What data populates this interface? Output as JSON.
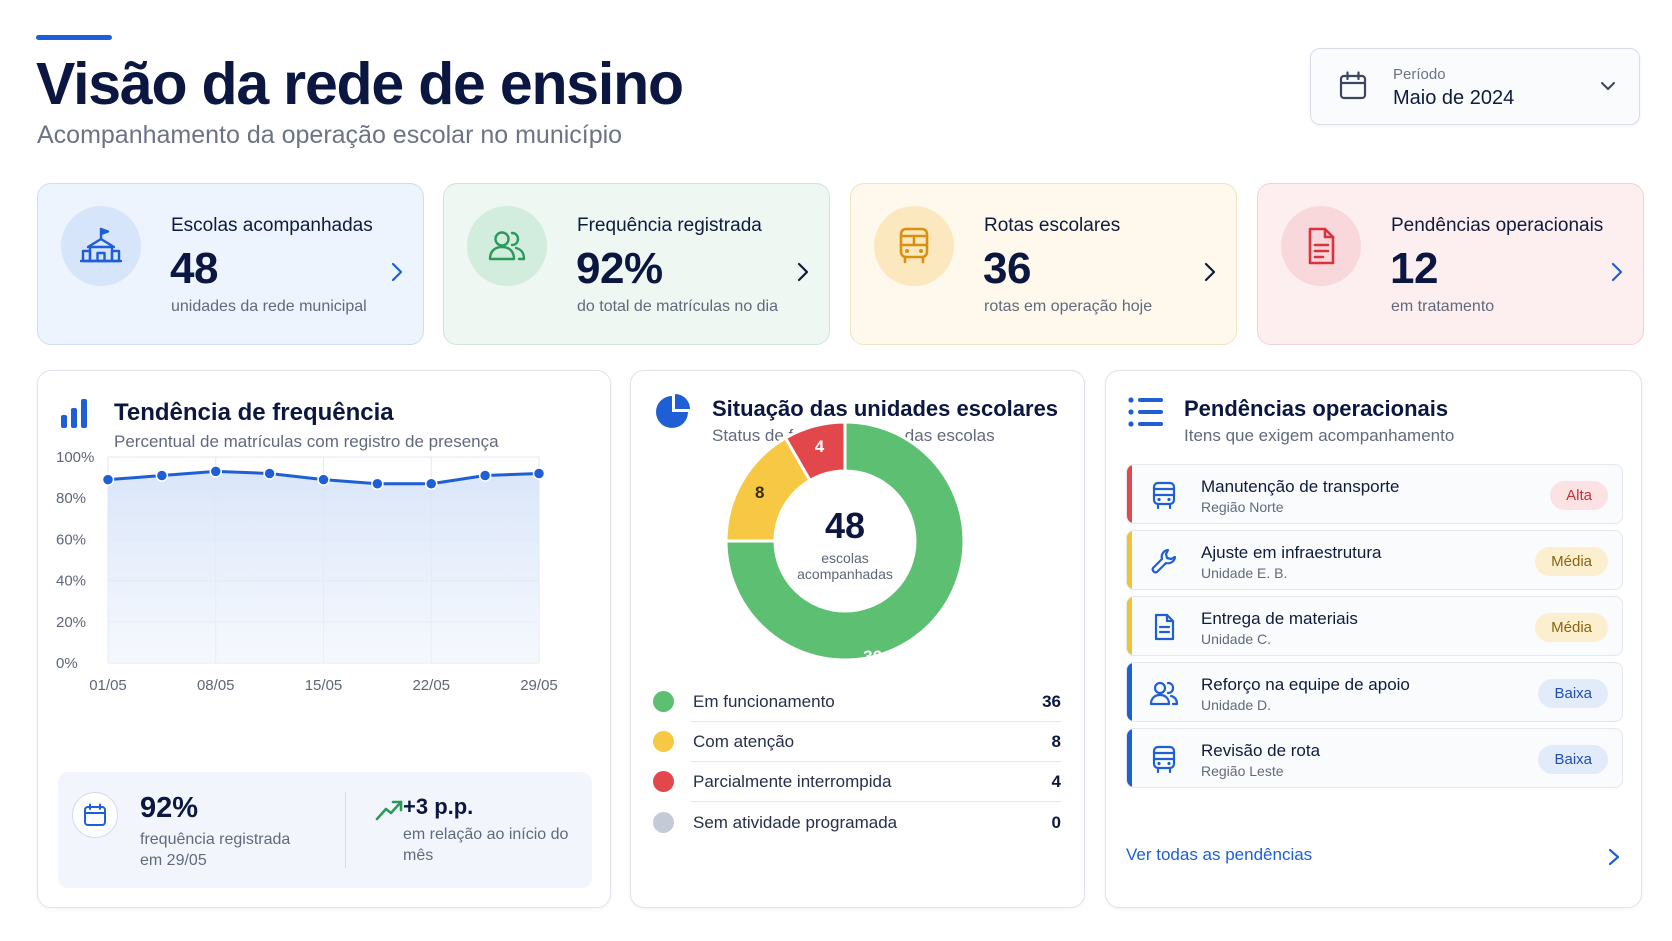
{
  "header": {
    "title": "Visão da rede de ensino",
    "subtitle": "Acompanhamento da operação escolar no município"
  },
  "period": {
    "label": "Período",
    "value": "Maio de 2024",
    "icon": "calendar-icon"
  },
  "kpis": [
    {
      "title": "Escolas acompanhadas",
      "value": "48",
      "desc": "unidades da rede municipal",
      "icon": "school-icon",
      "color": "#1f5fd6"
    },
    {
      "title": "Frequência registrada",
      "value": "92%",
      "desc": "do total de matrículas no dia",
      "icon": "users-icon",
      "color": "#2a9a5a"
    },
    {
      "title": "Rotas escolares",
      "value": "36",
      "desc": "rotas em operação hoje",
      "icon": "bus-icon",
      "color": "#d9900f"
    },
    {
      "title": "Pendências operacionais",
      "value": "12",
      "desc": "em tratamento",
      "icon": "document-icon",
      "color": "#d9343d"
    }
  ],
  "trend": {
    "title": "Tendência de frequência",
    "subtitle": "Percentual de matrículas com registro de presença",
    "summary": {
      "value": "92%",
      "desc": "frequência registrada em 29/05",
      "delta": "+3 p.p.",
      "delta_desc": "em relação ao início do mês"
    }
  },
  "chart_data": [
    {
      "type": "line",
      "title": "Tendência de frequência",
      "subtitle": "Percentual de matrículas com registro de presença",
      "x_tick_labels": [
        "01/05",
        "08/05",
        "15/05",
        "22/05",
        "29/05"
      ],
      "y_tick_labels": [
        "0%",
        "20%",
        "40%",
        "60%",
        "80%",
        "100%"
      ],
      "ylim": [
        0,
        100
      ],
      "x": [
        "01/05",
        "04/05",
        "08/05",
        "11/05",
        "15/05",
        "18/05",
        "22/05",
        "25/05",
        "29/05"
      ],
      "series": [
        {
          "values": [
            89,
            91,
            93,
            92,
            89,
            87,
            87,
            91,
            92
          ]
        }
      ],
      "grid": true,
      "area_fill": true,
      "color": "#1f5fd6"
    },
    {
      "type": "pie",
      "title": "Situação das unidades escolares",
      "subtitle": "Status de funcionamento das escolas",
      "center_value": "48",
      "center_label": "escolas acompanhadas",
      "slices": [
        {
          "name": "Em funcionamento",
          "value": 36,
          "color": "#5cbf72"
        },
        {
          "name": "Com atenção",
          "value": 8,
          "color": "#f7c843"
        },
        {
          "name": "Parcialmente interrompida",
          "value": 4,
          "color": "#e2474b"
        },
        {
          "name": "Sem atividade programada",
          "value": 0,
          "color": "#c4cbd6"
        }
      ]
    }
  ],
  "status": {
    "title": "Situação das unidades escolares",
    "subtitle": "Status de funcionamento das escolas",
    "center_value": "48",
    "center_label_1": "escolas",
    "center_label_2": "acompanhadas",
    "legend": [
      {
        "name": "Em funcionamento",
        "value": "36",
        "color": "#5cbf72"
      },
      {
        "name": "Com atenção",
        "value": "8",
        "color": "#f7c843"
      },
      {
        "name": "Parcialmente interrompida",
        "value": "4",
        "color": "#e2474b"
      },
      {
        "name": "Sem atividade programada",
        "value": "0",
        "color": "#c4cbd6"
      }
    ]
  },
  "pending": {
    "title": "Pendências operacionais",
    "subtitle": "Itens que exigem acompanhamento",
    "items": [
      {
        "title": "Manutenção de transporte",
        "sub": "Região Norte",
        "badge": "Alta",
        "icon": "bus-icon",
        "color": "#e2474b"
      },
      {
        "title": "Ajuste em infraestrutura",
        "sub": "Unidade E. B.",
        "badge": "Média",
        "icon": "wrench-icon",
        "color": "#f2c230"
      },
      {
        "title": "Entrega de materiais",
        "sub": "Unidade C.",
        "badge": "Média",
        "icon": "document-icon",
        "color": "#f2c230"
      },
      {
        "title": "Reforço na equipe de apoio",
        "sub": "Unidade D.",
        "badge": "Baixa",
        "icon": "users-icon",
        "color": "#1f5fd6"
      },
      {
        "title": "Revisão de rota",
        "sub": "Região Leste",
        "badge": "Baixa",
        "icon": "bus-icon",
        "color": "#1f5fd6"
      }
    ],
    "see_all": "Ver todas as pendências"
  }
}
